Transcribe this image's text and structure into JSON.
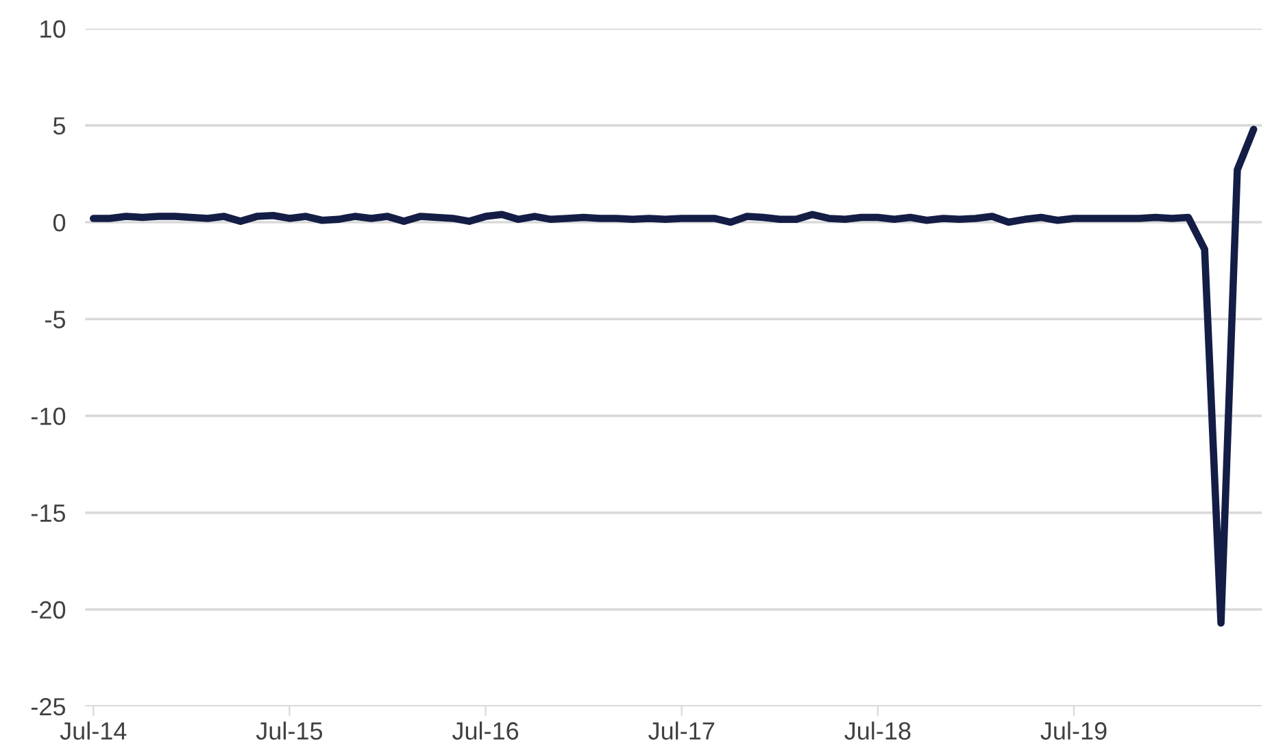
{
  "chart_data": {
    "type": "line",
    "categories": [
      "Jul-14",
      null,
      null,
      null,
      null,
      null,
      null,
      null,
      null,
      null,
      null,
      null,
      "Jul-15",
      null,
      null,
      null,
      null,
      null,
      null,
      null,
      null,
      null,
      null,
      null,
      "Jul-16",
      null,
      null,
      null,
      null,
      null,
      null,
      null,
      null,
      null,
      null,
      null,
      "Jul-17",
      null,
      null,
      null,
      null,
      null,
      null,
      null,
      null,
      null,
      null,
      null,
      "Jul-18",
      null,
      null,
      null,
      null,
      null,
      null,
      null,
      null,
      null,
      null,
      null,
      "Jul-19",
      null,
      null,
      null,
      null,
      null,
      null,
      null,
      null,
      null,
      null,
      null
    ],
    "series": [
      {
        "color": "#141d45",
        "values": [
          0.2,
          0.2,
          0.3,
          0.25,
          0.3,
          0.3,
          0.25,
          0.2,
          0.3,
          0.05,
          0.3,
          0.35,
          0.2,
          0.3,
          0.1,
          0.15,
          0.3,
          0.2,
          0.3,
          0.05,
          0.3,
          0.25,
          0.2,
          0.05,
          0.3,
          0.4,
          0.15,
          0.3,
          0.15,
          0.2,
          0.25,
          0.2,
          0.2,
          0.15,
          0.2,
          0.15,
          0.2,
          0.2,
          0.2,
          0.0,
          0.3,
          0.25,
          0.15,
          0.15,
          0.4,
          0.2,
          0.15,
          0.25,
          0.25,
          0.15,
          0.25,
          0.1,
          0.2,
          0.15,
          0.2,
          0.3,
          0.0,
          0.15,
          0.25,
          0.1,
          0.2,
          0.2,
          0.2,
          0.2,
          0.2,
          0.25,
          0.2,
          0.25,
          -1.4,
          -20.7,
          2.7,
          4.8
        ]
      }
    ],
    "ylim": [
      -25,
      10
    ],
    "yticks": [
      -25,
      -20,
      -15,
      -10,
      -5,
      0,
      5,
      10
    ],
    "grid": "y",
    "marker": "none",
    "line_style": "solid"
  }
}
